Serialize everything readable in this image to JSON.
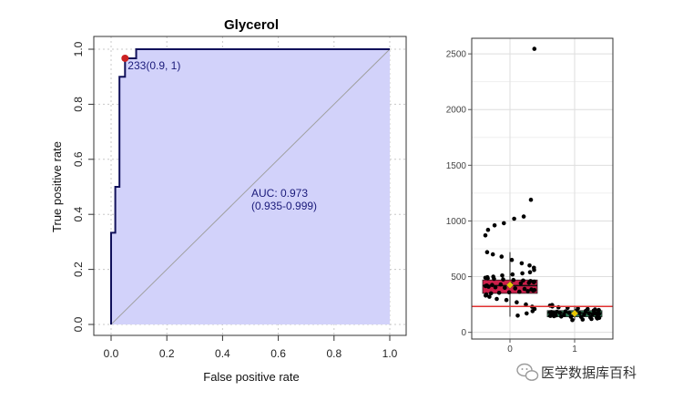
{
  "chart_data": [
    {
      "type": "line",
      "title": "Glycerol",
      "xlabel": "False positive rate",
      "ylabel": "True positive rate",
      "xlim": [
        0,
        1
      ],
      "ylim": [
        0,
        1
      ],
      "xticks": [
        "0.0",
        "0.2",
        "0.4",
        "0.6",
        "0.8",
        "1.0"
      ],
      "yticks": [
        "0.0",
        "0.2",
        "0.4",
        "0.6",
        "0.8",
        "1.0"
      ],
      "grid": true,
      "area_fill": "#d2d2fa",
      "line_color": "#10105a",
      "diagonal_color": "#a0a0a0",
      "series": [
        {
          "x": [
            0,
            0,
            0.015,
            0.015,
            0.03,
            0.03,
            0.05,
            0.05,
            0.09,
            0.09,
            1
          ],
          "y": [
            0,
            0.333,
            0.333,
            0.5,
            0.5,
            0.9,
            0.9,
            0.967,
            0.967,
            1,
            1
          ]
        }
      ],
      "best_point": {
        "x": 0.05,
        "y": 0.967,
        "label": "233(0.9, 1)",
        "color": "#cc2222"
      },
      "annotations": [
        "AUC: 0.973",
        "(0.935-0.999)"
      ]
    },
    {
      "type": "scatter",
      "categories": [
        "0",
        "1"
      ],
      "yticks": [
        "0",
        "500",
        "1000",
        "1500",
        "2000",
        "2500"
      ],
      "ylim": [
        -60,
        2640
      ],
      "cutoff": {
        "value": 233,
        "color": "#e03030"
      },
      "grid": true,
      "boxes": [
        {
          "category": "0",
          "q1": 350,
          "median": 420,
          "q3": 470,
          "whisker_low": 140,
          "whisker_high": 720,
          "mean": 425,
          "fill": "#cc1f4a",
          "mean_color": "#e8c800"
        },
        {
          "category": "1",
          "q1": 140,
          "median": 175,
          "q3": 195,
          "whisker_low": 110,
          "whisker_high": 240,
          "mean": 170,
          "fill": "#2f7f56",
          "mean_color": "#e8c800"
        }
      ],
      "points": [
        {
          "category": "0",
          "values": [
            2545,
            1190,
            1040,
            1020,
            980,
            960,
            920,
            870,
            720,
            700,
            680,
            650,
            620,
            600,
            580,
            560,
            540,
            530,
            520,
            510,
            500,
            495,
            490,
            485,
            480,
            475,
            470,
            465,
            460,
            455,
            450,
            445,
            440,
            435,
            430,
            425,
            420,
            415,
            410,
            405,
            400,
            395,
            390,
            385,
            380,
            375,
            370,
            365,
            360,
            355,
            350,
            340,
            330,
            320,
            300,
            290,
            270,
            250,
            230,
            210,
            190,
            170,
            150
          ]
        },
        {
          "category": "1",
          "values": [
            245,
            240,
            232,
            225,
            220,
            215,
            210,
            205,
            200,
            198,
            195,
            192,
            190,
            188,
            185,
            182,
            180,
            178,
            176,
            174,
            172,
            170,
            168,
            166,
            164,
            162,
            160,
            158,
            155,
            152,
            150,
            148,
            145,
            142,
            140,
            138,
            135,
            132,
            130,
            125,
            120,
            115,
            110
          ]
        }
      ]
    }
  ],
  "watermark": "医学数据库百科"
}
